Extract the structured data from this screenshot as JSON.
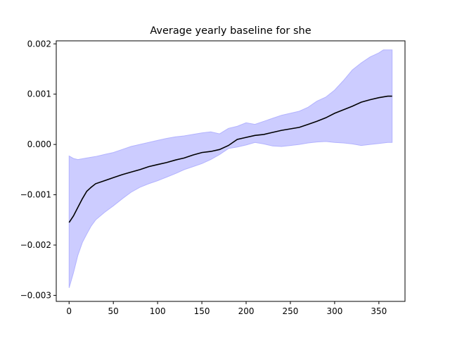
{
  "chart_data": {
    "type": "line",
    "title": "Average yearly baseline for she",
    "xlabel": "",
    "ylabel": "",
    "xlim": [
      -14.5,
      379.5
    ],
    "ylim": [
      -0.00312,
      0.00206
    ],
    "x_ticks": [
      0,
      50,
      100,
      150,
      200,
      250,
      300,
      350
    ],
    "x_tick_labels": [
      "0",
      "50",
      "100",
      "150",
      "200",
      "250",
      "300",
      "350"
    ],
    "y_ticks": [
      -0.003,
      -0.002,
      -0.001,
      0.0,
      0.001,
      0.002
    ],
    "y_tick_labels": [
      "−0.003",
      "−0.002",
      "−0.001",
      "0.000",
      "0.001",
      "0.002"
    ],
    "grid": false,
    "legend": "none",
    "colors": {
      "line": "#000000",
      "band_fill": "#ccccff",
      "band_edge": "#b3b3ff"
    },
    "series": [
      {
        "role": "mean",
        "x": [
          0,
          5,
          10,
          15,
          20,
          25,
          30,
          40,
          50,
          60,
          70,
          80,
          90,
          100,
          110,
          120,
          130,
          140,
          150,
          160,
          170,
          180,
          190,
          200,
          210,
          220,
          230,
          240,
          250,
          260,
          270,
          280,
          290,
          300,
          310,
          320,
          330,
          340,
          350,
          360,
          365
        ],
        "y": [
          -0.00155,
          -0.00142,
          -0.00125,
          -0.00108,
          -0.00093,
          -0.00085,
          -0.00078,
          -0.00072,
          -0.00066,
          -0.0006,
          -0.00055,
          -0.0005,
          -0.00044,
          -0.0004,
          -0.00036,
          -0.00031,
          -0.00027,
          -0.00021,
          -0.00016,
          -0.00014,
          -0.0001,
          -2e-05,
          0.0001,
          0.00014,
          0.00018,
          0.0002,
          0.00024,
          0.00028,
          0.00031,
          0.00034,
          0.0004,
          0.00046,
          0.00053,
          0.00062,
          0.00069,
          0.00076,
          0.00084,
          0.00089,
          0.00093,
          0.00096,
          0.00096
        ]
      },
      {
        "role": "upper",
        "x": [
          0,
          5,
          10,
          20,
          30,
          40,
          50,
          60,
          70,
          80,
          90,
          100,
          110,
          120,
          130,
          140,
          150,
          160,
          170,
          180,
          190,
          200,
          210,
          220,
          230,
          240,
          250,
          260,
          270,
          280,
          290,
          300,
          310,
          320,
          330,
          340,
          350,
          355,
          365
        ],
        "y": [
          -0.00023,
          -0.00028,
          -0.0003,
          -0.00027,
          -0.00024,
          -0.0002,
          -0.00016,
          -0.0001,
          -4e-05,
          0.0,
          4e-05,
          8e-05,
          0.00012,
          0.00015,
          0.00017,
          0.0002,
          0.00023,
          0.00025,
          0.00021,
          0.00032,
          0.00036,
          0.00043,
          0.0004,
          0.00046,
          0.00052,
          0.00058,
          0.00062,
          0.00066,
          0.00074,
          0.00086,
          0.00094,
          0.00108,
          0.00127,
          0.00148,
          0.00162,
          0.00174,
          0.00182,
          0.00188,
          0.00188
        ]
      },
      {
        "role": "lower",
        "x": [
          0,
          5,
          10,
          15,
          20,
          25,
          30,
          40,
          50,
          60,
          70,
          80,
          90,
          100,
          110,
          120,
          130,
          140,
          150,
          160,
          170,
          180,
          190,
          200,
          210,
          220,
          230,
          240,
          250,
          260,
          270,
          280,
          290,
          300,
          310,
          320,
          330,
          340,
          350,
          360,
          365
        ],
        "y": [
          -0.00285,
          -0.00255,
          -0.0022,
          -0.00195,
          -0.00178,
          -0.00162,
          -0.0015,
          -0.00135,
          -0.00122,
          -0.00108,
          -0.00095,
          -0.00085,
          -0.00078,
          -0.00072,
          -0.00065,
          -0.00058,
          -0.0005,
          -0.00044,
          -0.00038,
          -0.0003,
          -0.0002,
          -8e-05,
          -5e-05,
          -1e-05,
          4e-05,
          1e-05,
          -3e-05,
          -4e-05,
          -2e-05,
          0.0,
          3e-05,
          5e-05,
          6e-05,
          4e-05,
          3e-05,
          1e-05,
          -2e-05,
          0.0,
          2e-05,
          4e-05,
          4e-05
        ]
      }
    ]
  }
}
